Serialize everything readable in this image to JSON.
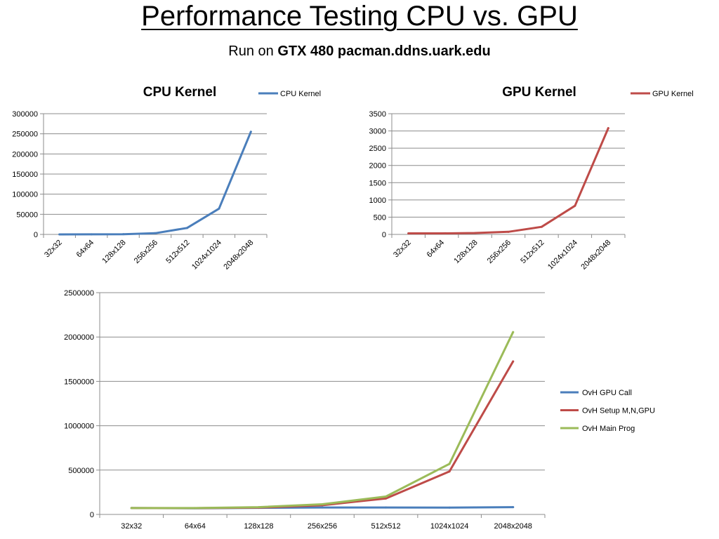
{
  "slide": {
    "title": "Performance Testing CPU vs. GPU",
    "subtitle_prefix": "Run on",
    "subtitle_bold": "GTX 480 pacman.ddns.uark.edu"
  },
  "chart_data": [
    {
      "type": "line",
      "title": "CPU Kernel",
      "categories": [
        "32x32",
        "64x64",
        "128x128",
        "256x256",
        "512x512",
        "1024x1024",
        "2048x2048"
      ],
      "series": [
        {
          "name": "CPU Kernel",
          "color": "#4a7ebb",
          "values": [
            80,
            150,
            600,
            3000,
            16000,
            64000,
            255000
          ]
        }
      ],
      "ylim": [
        0,
        300000
      ],
      "yticks": [
        0,
        50000,
        100000,
        150000,
        200000,
        250000,
        300000
      ],
      "grid": true,
      "legend": "top-right",
      "x_tick_rotation": "diagonal"
    },
    {
      "type": "line",
      "title": "GPU Kernel",
      "categories": [
        "32x32",
        "64x64",
        "128x128",
        "256x256",
        "512x512",
        "1024x1024",
        "2048x2048"
      ],
      "series": [
        {
          "name": "GPU Kernel",
          "color": "#be4b48",
          "values": [
            30,
            30,
            40,
            75,
            220,
            830,
            3080
          ]
        }
      ],
      "ylim": [
        0,
        3500
      ],
      "yticks": [
        0,
        500,
        1000,
        1500,
        2000,
        2500,
        3000,
        3500
      ],
      "grid": true,
      "legend": "top-right",
      "x_tick_rotation": "diagonal"
    },
    {
      "type": "line",
      "title": "",
      "categories": [
        "32x32",
        "64x64",
        "128x128",
        "256x256",
        "512x512",
        "1024x1024",
        "2048x2048"
      ],
      "series": [
        {
          "name": "OvH GPU Call",
          "color": "#4a7ebb",
          "values": [
            72000,
            70000,
            74000,
            78000,
            78000,
            77000,
            82000
          ]
        },
        {
          "name": "OvH Setup M,N,GPU",
          "color": "#be4b48",
          "values": [
            72000,
            71000,
            77000,
            104000,
            180000,
            485000,
            1725000
          ]
        },
        {
          "name": "OvH Main Prog",
          "color": "#9bbb59",
          "values": [
            72000,
            72000,
            82000,
            115000,
            202000,
            570000,
            2055000
          ]
        }
      ],
      "ylim": [
        0,
        2500000
      ],
      "yticks": [
        0,
        500000,
        1000000,
        1500000,
        2000000,
        2500000
      ],
      "grid": true,
      "legend": "right",
      "x_tick_rotation": "horizontal"
    }
  ]
}
